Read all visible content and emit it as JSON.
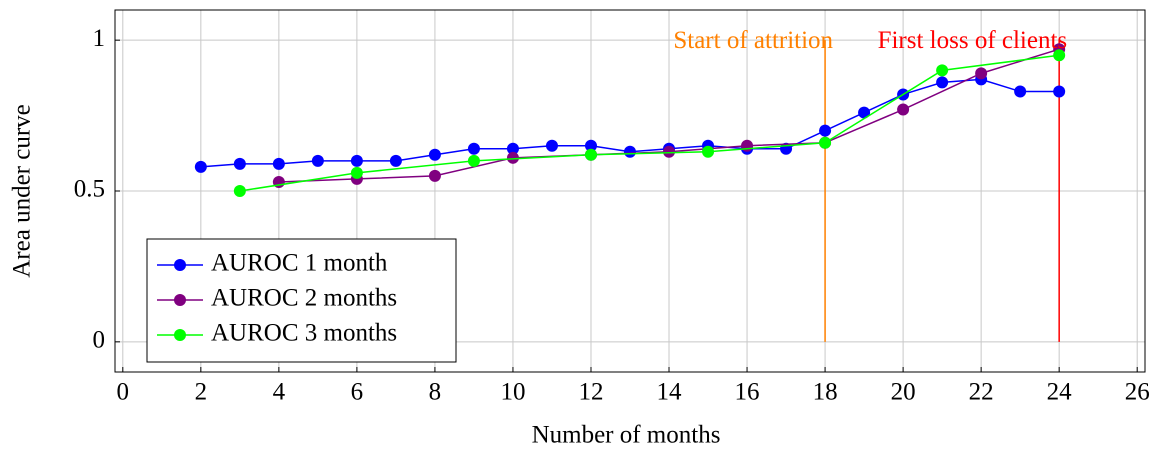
{
  "chart_data": {
    "type": "line",
    "xlabel": "Number of months",
    "ylabel": "Area under curve",
    "xlim": [
      -0.2,
      26.2
    ],
    "ylim": [
      -0.1,
      1.1
    ],
    "xticks": [
      0,
      2,
      4,
      6,
      8,
      10,
      12,
      14,
      16,
      18,
      20,
      22,
      24,
      26
    ],
    "yticks": [
      0,
      0.5,
      1
    ],
    "grid": true,
    "legend": "lower left",
    "series": [
      {
        "name": "AUROC 1 month",
        "color": "#0000ff",
        "x": [
          2,
          3,
          4,
          5,
          6,
          7,
          8,
          9,
          10,
          11,
          12,
          13,
          14,
          15,
          16,
          17,
          18,
          19,
          20,
          21,
          22,
          23,
          24
        ],
        "values": [
          0.58,
          0.59,
          0.59,
          0.6,
          0.6,
          0.6,
          0.62,
          0.64,
          0.64,
          0.65,
          0.65,
          0.63,
          0.64,
          0.65,
          0.64,
          0.64,
          0.7,
          0.76,
          0.82,
          0.86,
          0.87,
          0.83,
          0.83
        ]
      },
      {
        "name": "AUROC 2 months",
        "color": "#800080",
        "x": [
          4,
          6,
          8,
          10,
          12,
          14,
          16,
          18,
          20,
          22,
          24
        ],
        "values": [
          0.53,
          0.54,
          0.55,
          0.61,
          0.62,
          0.63,
          0.65,
          0.66,
          0.77,
          0.89,
          0.97
        ]
      },
      {
        "name": "AUROC 3 months",
        "color": "#00ff00",
        "x": [
          3,
          6,
          9,
          12,
          15,
          18,
          21,
          24
        ],
        "values": [
          0.5,
          0.56,
          0.6,
          0.62,
          0.63,
          0.66,
          0.9,
          0.95
        ]
      }
    ],
    "annotations": [
      {
        "label": "Start of attrition",
        "x": 18,
        "color": "#ff8000"
      },
      {
        "label": "First loss of clients",
        "x": 24,
        "color": "#ff0000"
      }
    ]
  }
}
